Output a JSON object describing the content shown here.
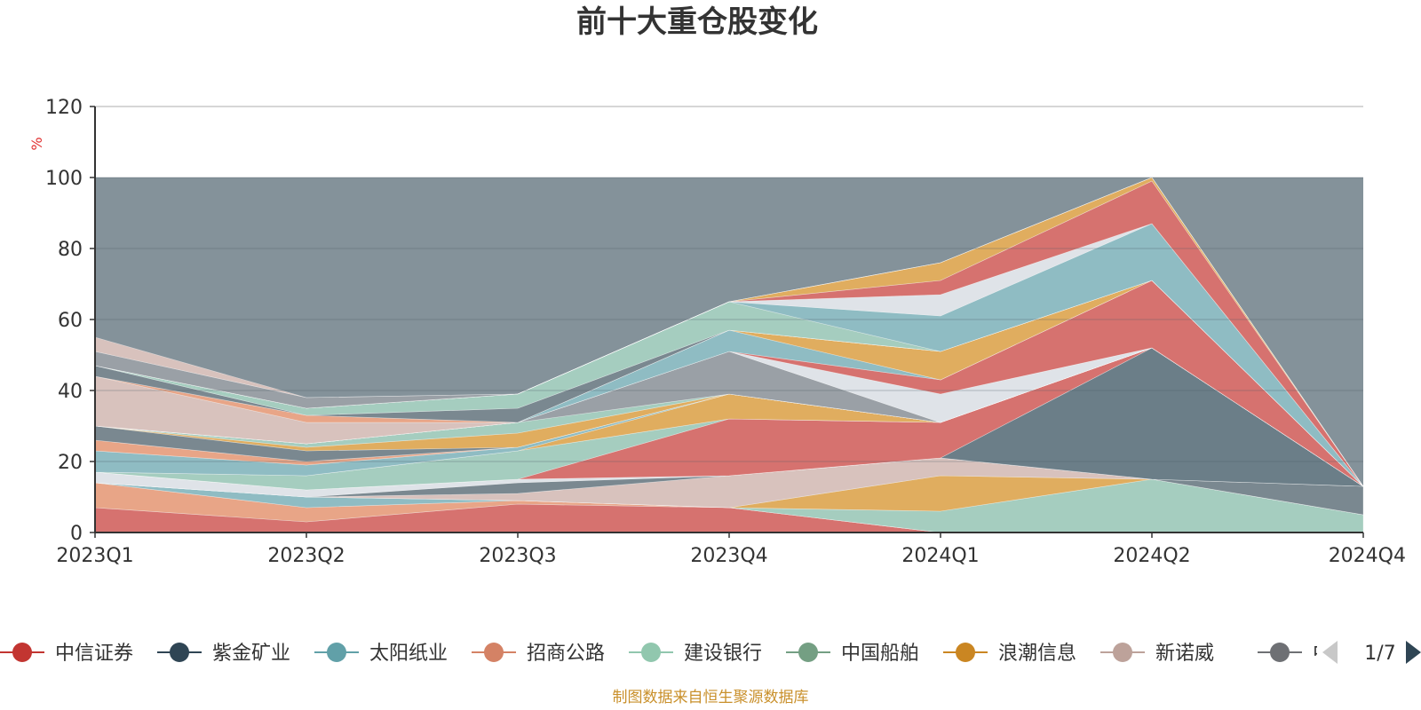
{
  "chart_data": {
    "type": "area",
    "title": "前十大重仓股变化",
    "ylabel": "%",
    "xlabel": "",
    "ylim": [
      0,
      120
    ],
    "yticks": [
      0,
      20,
      40,
      60,
      80,
      100,
      120
    ],
    "categories": [
      "2023Q1",
      "2023Q2",
      "2023Q3",
      "2023Q4",
      "2024Q1",
      "2024Q2",
      "2024Q4"
    ],
    "background_band": {
      "from": 0,
      "to": 100,
      "color": "#84929a"
    },
    "layers": [
      {
        "name": "L01",
        "color": "#d6726f",
        "values": [
          7,
          3,
          8,
          7,
          0,
          0,
          0
        ]
      },
      {
        "name": "L02",
        "color": "#e8a587",
        "values": [
          7,
          4,
          1,
          0,
          0,
          0,
          0
        ]
      },
      {
        "name": "L03",
        "color": "#8fbcc3",
        "values": [
          0,
          3,
          0,
          0,
          0,
          0,
          0
        ]
      },
      {
        "name": "L04",
        "color": "#a5cdbf",
        "values": [
          0,
          0,
          0,
          0,
          6,
          15,
          5
        ]
      },
      {
        "name": "L05",
        "color": "#e0ad5f",
        "values": [
          0,
          0,
          0,
          0,
          10,
          0,
          0
        ]
      },
      {
        "name": "L06",
        "color": "#d8c2bd",
        "values": [
          0,
          0,
          2,
          9,
          5,
          0,
          0
        ]
      },
      {
        "name": "L07",
        "color": "#7a8890",
        "values": [
          0,
          0,
          3,
          0,
          0,
          0,
          8
        ]
      },
      {
        "name": "L08",
        "color": "#dfe3e8",
        "values": [
          3,
          2,
          1,
          0,
          0,
          0,
          0
        ]
      },
      {
        "name": "L09",
        "color": "#6b7e88",
        "values": [
          0,
          0,
          0,
          0,
          0,
          37,
          0
        ]
      },
      {
        "name": "L10",
        "color": "#d6726f",
        "values": [
          0,
          0,
          0,
          16,
          10,
          0,
          0
        ]
      },
      {
        "name": "L11",
        "color": "#a5cdbf",
        "values": [
          0,
          4,
          8,
          0,
          0,
          0,
          0
        ]
      },
      {
        "name": "L12",
        "color": "#e0ad5f",
        "values": [
          0,
          0,
          0,
          7,
          0,
          0,
          0
        ]
      },
      {
        "name": "L13",
        "color": "#8fbcc3",
        "values": [
          6,
          3,
          1,
          0,
          0,
          0,
          0
        ]
      },
      {
        "name": "L14",
        "color": "#e8a587",
        "values": [
          3,
          1,
          0,
          0,
          0,
          0,
          0
        ]
      },
      {
        "name": "L15",
        "color": "#7a8890",
        "values": [
          4,
          3,
          0,
          0,
          0,
          0,
          0
        ]
      },
      {
        "name": "L16",
        "color": "#e0ad5f",
        "values": [
          0,
          1,
          4,
          0,
          0,
          0,
          0
        ]
      },
      {
        "name": "L17",
        "color": "#a5cdbf",
        "values": [
          0,
          1,
          3,
          0,
          0,
          0,
          0
        ]
      },
      {
        "name": "L18",
        "color": "#9aa0a6",
        "values": [
          0,
          0,
          0,
          12,
          0,
          0,
          0
        ]
      },
      {
        "name": "L19",
        "color": "#dfe3e8",
        "values": [
          0,
          0,
          0,
          0,
          8,
          0,
          0
        ]
      },
      {
        "name": "L20",
        "color": "#d6726f",
        "values": [
          0,
          0,
          0,
          0,
          4,
          19,
          0
        ]
      },
      {
        "name": "L21",
        "color": "#8fbcc3",
        "values": [
          0,
          0,
          0,
          6,
          0,
          0,
          0
        ]
      },
      {
        "name": "L22",
        "color": "#e0ad5f",
        "values": [
          0,
          0,
          0,
          0,
          8,
          0,
          0
        ]
      },
      {
        "name": "L23",
        "color": "#d8c2bd",
        "values": [
          14,
          6,
          0,
          0,
          0,
          0,
          0
        ]
      },
      {
        "name": "L24",
        "color": "#e8a587",
        "values": [
          0,
          2,
          0,
          0,
          0,
          0,
          0
        ]
      },
      {
        "name": "L25",
        "color": "#7a8890",
        "values": [
          3,
          0,
          4,
          0,
          0,
          0,
          0
        ]
      },
      {
        "name": "L26",
        "color": "#a5cdbf",
        "values": [
          0,
          2,
          4,
          8,
          0,
          0,
          0
        ]
      },
      {
        "name": "L27",
        "color": "#8fbcc3",
        "values": [
          0,
          0,
          0,
          0,
          10,
          16,
          0
        ]
      },
      {
        "name": "L28",
        "color": "#dfe3e8",
        "values": [
          0,
          0,
          0,
          0,
          6,
          0,
          0
        ]
      },
      {
        "name": "L29",
        "color": "#d6726f",
        "values": [
          0,
          0,
          0,
          0,
          4,
          12,
          0
        ]
      },
      {
        "name": "L30",
        "color": "#e0ad5f",
        "values": [
          0,
          0,
          0,
          0,
          5,
          1,
          0
        ]
      },
      {
        "name": "L31",
        "color": "#9aa0a6",
        "values": [
          4,
          3,
          0,
          0,
          0,
          0,
          0
        ]
      },
      {
        "name": "L32",
        "color": "#d8c2bd",
        "values": [
          4,
          0,
          0,
          0,
          0,
          0,
          0
        ]
      }
    ],
    "legend": {
      "position": "bottom",
      "items": [
        {
          "label": "中信证券",
          "color": "#c23531"
        },
        {
          "label": "紫金矿业",
          "color": "#2f4554"
        },
        {
          "label": "太阳纸业",
          "color": "#61a0a8"
        },
        {
          "label": "招商公路",
          "color": "#d48265"
        },
        {
          "label": "建设银行",
          "color": "#91c7ae"
        },
        {
          "label": "中国船舶",
          "color": "#749f83"
        },
        {
          "label": "浪潮信息",
          "color": "#ca8622"
        },
        {
          "label": "新诺威",
          "color": "#bda29a"
        },
        {
          "label": "中国",
          "color": "#6e7074"
        }
      ],
      "pager": "1/7"
    },
    "source_note": "制图数据来自恒生聚源数据库"
  }
}
